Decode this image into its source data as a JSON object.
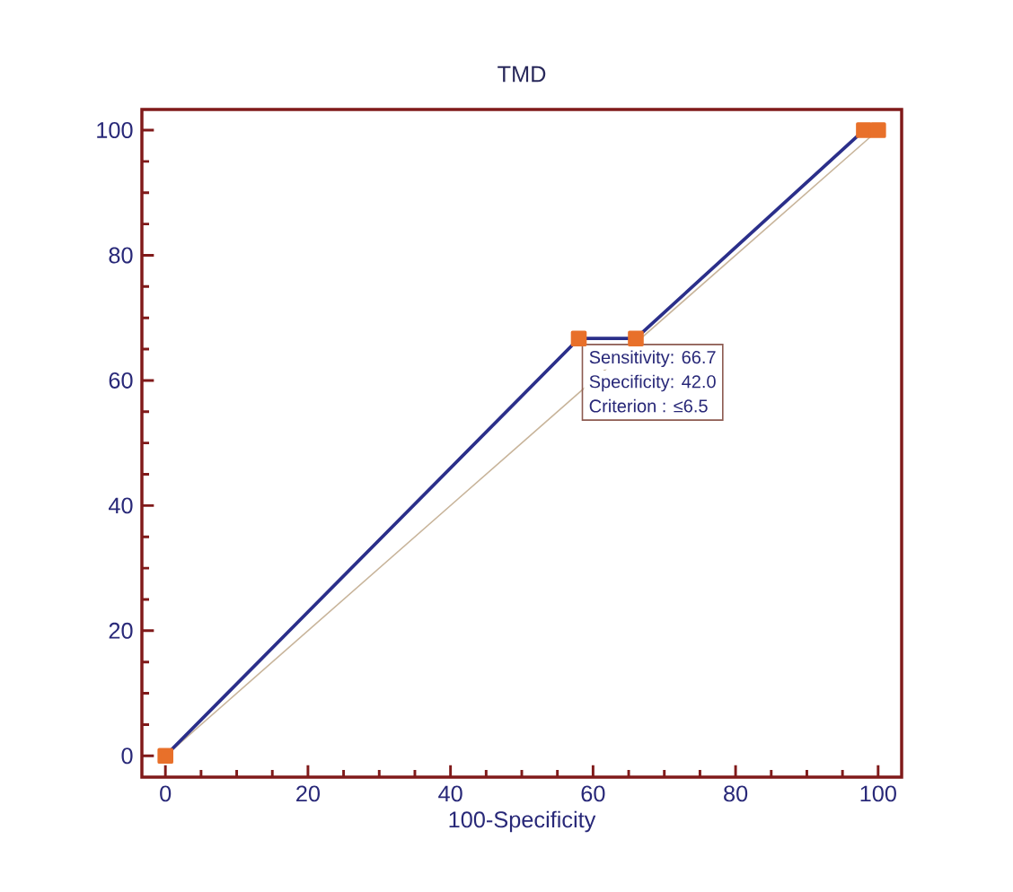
{
  "chart_data": {
    "type": "line",
    "title": "TMD",
    "xlabel": "100-Specificity",
    "x": [
      0,
      58,
      66,
      98,
      100
    ],
    "series": [
      {
        "color": "#2b2f8a",
        "values": [
          0,
          66.7,
          66.7,
          100,
          100
        ],
        "marker": "square"
      },
      {
        "type": "line",
        "color": "#c8b49a",
        "x": [
          0,
          100
        ],
        "values": [
          0,
          100
        ],
        "marker": "none"
      }
    ],
    "annotations": [
      {
        "text": "Sensitivity: 66.7",
        "x": 58,
        "y": 66.7
      },
      "Specificity: 42.0",
      "Criterion : ≤6.5"
    ],
    "xlim": [
      -3.3,
      103.3
    ],
    "ylim": [
      -3.4,
      103.3
    ],
    "xticks": [
      0,
      20,
      40,
      60,
      80,
      100
    ],
    "yticks": [
      0,
      20,
      40,
      60,
      80,
      100
    ],
    "grid": false
  }
}
